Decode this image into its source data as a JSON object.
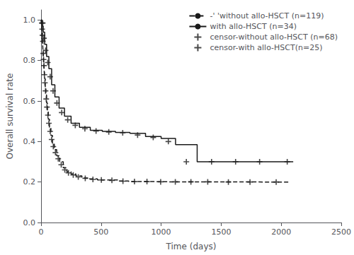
{
  "chart_data": {
    "type": "line",
    "xlabel": "Time (days)",
    "ylabel": "Overall survival rate",
    "xlim": [
      0,
      2500
    ],
    "ylim": [
      0.0,
      1.05
    ],
    "xticks": [
      0,
      500,
      1000,
      1500,
      2000,
      2500
    ],
    "yticks": [
      {
        "value": 0.0,
        "label": "0.0"
      },
      0.2,
      0.4,
      0.6,
      0.8,
      {
        "value": 1.0,
        "label": "1.0"
      }
    ],
    "grid": false,
    "legend": "upper right",
    "color": "#1a1a1a",
    "series": [
      {
        "name": "-' 'without allo-HSCT (n=119)",
        "type": "step",
        "line_style": "dashed",
        "x": [
          0,
          4,
          7,
          10,
          13,
          16,
          19,
          22,
          26,
          30,
          35,
          40,
          46,
          53,
          60,
          70,
          82,
          95,
          110,
          130,
          155,
          185,
          215,
          250,
          290,
          340,
          400,
          470,
          550,
          640,
          730,
          830,
          940,
          1060,
          1180,
          1320,
          1480,
          1650,
          1850,
          2060
        ],
        "values": [
          1.0,
          0.97,
          0.94,
          0.91,
          0.88,
          0.85,
          0.82,
          0.79,
          0.75,
          0.71,
          0.67,
          0.63,
          0.59,
          0.55,
          0.51,
          0.47,
          0.43,
          0.39,
          0.36,
          0.33,
          0.3,
          0.27,
          0.25,
          0.24,
          0.23,
          0.22,
          0.215,
          0.21,
          0.21,
          0.205,
          0.202,
          0.202,
          0.201,
          0.201,
          0.201,
          0.201,
          0.201,
          0.2,
          0.2,
          0.2
        ]
      },
      {
        "name": "with allo-HSCT (n=34)",
        "type": "step",
        "line_style": "solid",
        "x": [
          0,
          8,
          18,
          30,
          46,
          65,
          88,
          115,
          150,
          195,
          250,
          320,
          410,
          510,
          620,
          740,
          870,
          1000,
          1120,
          1300,
          1500,
          1700,
          1900,
          2100
        ],
        "values": [
          1.0,
          0.97,
          0.94,
          0.88,
          0.82,
          0.76,
          0.68,
          0.62,
          0.565,
          0.525,
          0.49,
          0.47,
          0.455,
          0.45,
          0.445,
          0.44,
          0.425,
          0.415,
          0.385,
          0.3,
          0.3,
          0.3,
          0.3,
          0.3
        ]
      },
      {
        "name": "censor-without allo-HSCT (n=68)",
        "type": "scatter",
        "marker": "plus",
        "x": [
          6,
          9,
          12,
          15,
          18,
          21,
          24,
          28,
          32,
          37,
          43,
          49,
          57,
          65,
          76,
          88,
          102,
          120,
          143,
          168,
          198,
          228,
          268,
          310,
          368,
          432,
          502,
          590,
          682,
          778,
          882,
          996,
          1118,
          1248,
          1388,
          1560,
          1740,
          1958
        ],
        "values": [
          0.985,
          0.955,
          0.925,
          0.895,
          0.835,
          0.805,
          0.775,
          0.73,
          0.69,
          0.65,
          0.61,
          0.57,
          0.53,
          0.49,
          0.45,
          0.41,
          0.375,
          0.345,
          0.315,
          0.285,
          0.26,
          0.245,
          0.235,
          0.225,
          0.218,
          0.213,
          0.21,
          0.208,
          0.204,
          0.202,
          0.202,
          0.201,
          0.201,
          0.201,
          0.201,
          0.2,
          0.2,
          0.2
        ]
      },
      {
        "name": "censor-with allo-HSCT(n=25)",
        "type": "scatter",
        "marker": "plus",
        "x": [
          14,
          24,
          38,
          56,
          76,
          100,
          132,
          172,
          222,
          285,
          365,
          458,
          564,
          680,
          804,
          934,
          1060,
          1210,
          1420,
          1620,
          1820,
          2050
        ],
        "values": [
          0.985,
          0.91,
          0.85,
          0.79,
          0.72,
          0.65,
          0.59,
          0.543,
          0.507,
          0.48,
          0.463,
          0.452,
          0.447,
          0.443,
          0.432,
          0.42,
          0.4,
          0.3,
          0.3,
          0.3,
          0.3,
          0.3
        ]
      }
    ]
  }
}
